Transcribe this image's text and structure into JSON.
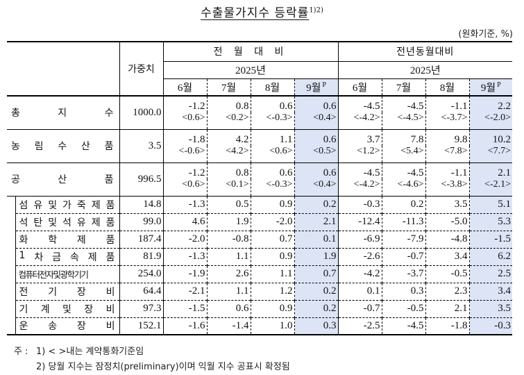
{
  "title": {
    "text": "수출물가지수 등락률",
    "superscript": "1)2)"
  },
  "unit": "(원화기준, %)",
  "header": {
    "weight": "가중치",
    "groups": [
      {
        "label": "전 월 대 비",
        "year": "2025년"
      },
      {
        "label": "전년동월대비",
        "year": "2025년"
      }
    ],
    "months": [
      "6월",
      "7월",
      "8월",
      "9월",
      "6월",
      "7월",
      "8월",
      "9월"
    ],
    "preliminary_mark": "P",
    "highlight_color": "#dde4f5"
  },
  "major_rows": [
    {
      "label": [
        "총",
        "지",
        "수"
      ],
      "weight": "1000.0",
      "values": [
        "-1.2",
        "0.8",
        "0.6",
        "0.6",
        "-4.5",
        "-4.5",
        "-1.1",
        "2.2"
      ],
      "contract": [
        "<0.6>",
        "<0.2>",
        "<-0.3>",
        "<0.4>",
        "<-4.2>",
        "<-4.5>",
        "<-3.7>",
        "<-2.0>"
      ]
    },
    {
      "label": [
        "농",
        "림",
        "수",
        "산",
        "품"
      ],
      "weight": "3.5",
      "values": [
        "-1.8",
        "4.2",
        "1.1",
        "0.6",
        "3.7",
        "7.8",
        "9.8",
        "10.2"
      ],
      "contract": [
        "<-0.6>",
        "<4.2>",
        "<0.6>",
        "<0.5>",
        "<1.2>",
        "<5.4>",
        "<7.8>",
        "<7.7>"
      ]
    },
    {
      "label": [
        "공",
        "산",
        "품"
      ],
      "weight": "996.5",
      "values": [
        "-1.2",
        "0.8",
        "0.6",
        "0.6",
        "-4.5",
        "-4.5",
        "-1.1",
        "2.1"
      ],
      "contract": [
        "<0.6>",
        "<0.1>",
        "<-0.3>",
        "<0.4>",
        "<-4.2>",
        "<-4.6>",
        "<-3.8>",
        "<-2.1>"
      ]
    }
  ],
  "minor_rows": [
    {
      "label": [
        "섬",
        "유",
        "및",
        "가",
        "죽",
        "제",
        "품"
      ],
      "weight": "14.8",
      "values": [
        "-1.3",
        "0.5",
        "0.9",
        "0.2",
        "-0.3",
        "0.2",
        "3.5",
        "5.1"
      ]
    },
    {
      "label": [
        "석",
        "탄",
        "및",
        "석",
        "유",
        "제",
        "품"
      ],
      "weight": "99.0",
      "values": [
        "4.6",
        "1.9",
        "-2.0",
        "2.1",
        "-12.4",
        "-11.3",
        "-5.0",
        "5.3"
      ]
    },
    {
      "label": [
        "화",
        "학",
        "제",
        "품"
      ],
      "weight": "187.4",
      "values": [
        "-2.0",
        "-0.8",
        "0.7",
        "0.1",
        "-6.9",
        "-7.9",
        "-4.8",
        "-1.5"
      ]
    },
    {
      "label": [
        "1",
        "차",
        "금",
        "속",
        "제",
        "품"
      ],
      "weight": "81.9",
      "values": [
        "-1.3",
        "1.1",
        "0.9",
        "1.9",
        "-2.6",
        "-0.7",
        "3.4",
        "6.2"
      ]
    },
    {
      "label": [
        "컴퓨터전자및광학기기"
      ],
      "weight": "254.0",
      "values": [
        "-1.9",
        "2.6",
        "1.1",
        "0.7",
        "-4.2",
        "-3.7",
        "-0.5",
        "2.5"
      ]
    },
    {
      "label": [
        "전",
        "기",
        "장",
        "비"
      ],
      "weight": "64.4",
      "values": [
        "-2.1",
        "1.1",
        "1.2",
        "0.2",
        "0.1",
        "0.3",
        "2.3",
        "3.4"
      ]
    },
    {
      "label": [
        "기",
        "계",
        "및",
        "장",
        "비"
      ],
      "weight": "97.3",
      "values": [
        "-1.5",
        "0.6",
        "0.9",
        "0.2",
        "-0.7",
        "-0.5",
        "2.1",
        "3.5"
      ]
    },
    {
      "label": [
        "운",
        "송",
        "장",
        "비"
      ],
      "weight": "152.1",
      "values": [
        "-1.6",
        "-1.4",
        "1.0",
        "0.3",
        "-2.5",
        "-4.5",
        "-1.8",
        "-0.3"
      ]
    }
  ],
  "notes": {
    "head": "주 :",
    "items": [
      "1) < >내는 계약통화기준임",
      "2) 당월 지수는 잠정치(preliminary)이며 익월 지수 공표시 확정됨"
    ]
  }
}
